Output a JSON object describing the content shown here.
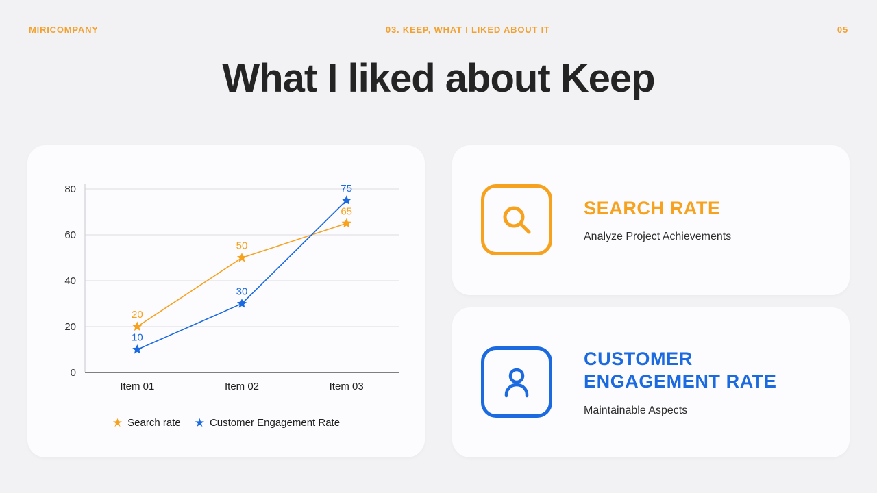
{
  "header": {
    "company": "MIRICOMPANY",
    "section": "03. KEEP, WHAT I LIKED ABOUT IT",
    "page": "05"
  },
  "title": "What I liked about Keep",
  "colors": {
    "orange": "#F6A21E",
    "blue": "#1B6AE0",
    "heading": "#242424",
    "grid": "#DCDCE2"
  },
  "chart_data": {
    "type": "line",
    "title": "",
    "xlabel": "",
    "ylabel": "",
    "categories": [
      "Item 01",
      "Item 02",
      "Item 03"
    ],
    "series": [
      {
        "name": "Search rate",
        "values": [
          20,
          50,
          65
        ],
        "color": "#F6A21E"
      },
      {
        "name": "Customer Engagement Rate",
        "values": [
          10,
          30,
          75
        ],
        "color": "#1B6AE0"
      }
    ],
    "ylim": [
      0,
      80
    ],
    "yticks": [
      0,
      20,
      40,
      60,
      80
    ],
    "marker": "star",
    "grid": true,
    "legend_position": "bottom",
    "data_labels": true
  },
  "cards": [
    {
      "title": "SEARCH RATE",
      "description": "Analyze Project Achievements",
      "icon": "search-icon",
      "color": "#F6A21E"
    },
    {
      "title": "CUSTOMER ENGAGEMENT RATE",
      "description": "Maintainable Aspects",
      "icon": "person-icon",
      "color": "#1B6AE0"
    }
  ]
}
